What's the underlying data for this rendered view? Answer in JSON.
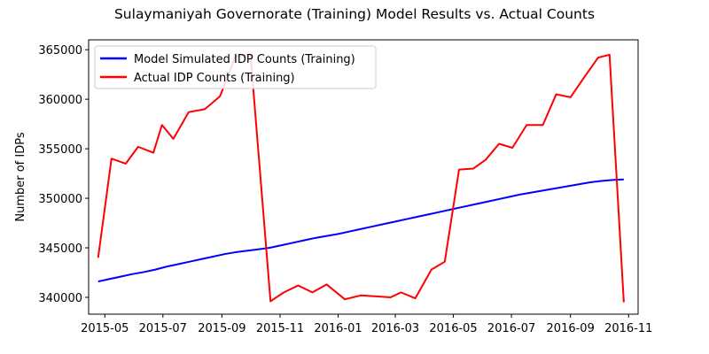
{
  "chart_data": {
    "type": "line",
    "title": "Sulaymaniyah Governorate (Training) Model Results vs. Actual Counts",
    "xlabel": "",
    "ylabel": "Number of IDPs",
    "ylim": [
      338300,
      366000
    ],
    "xlim": [
      "2015-04-14",
      "2016-11-11"
    ],
    "x_ticks": [
      "2015-05",
      "2015-07",
      "2015-09",
      "2015-11",
      "2016-01",
      "2016-03",
      "2016-05",
      "2016-07",
      "2016-09",
      "2016-11"
    ],
    "y_ticks": [
      340000,
      345000,
      350000,
      355000,
      360000,
      365000
    ],
    "grid": false,
    "legend_position": "top-left",
    "series": [
      {
        "name": "Model Simulated IDP Counts (Training)",
        "color": "#0000ff",
        "x": [
          "2015-04-24",
          "2015-05-06",
          "2015-05-18",
          "2015-05-30",
          "2015-06-11",
          "2015-06-23",
          "2015-07-05",
          "2015-07-17",
          "2015-07-29",
          "2015-08-10",
          "2015-08-22",
          "2015-09-03",
          "2015-09-15",
          "2015-09-27",
          "2015-10-09",
          "2015-10-21",
          "2015-11-02",
          "2015-11-14",
          "2015-11-26",
          "2015-12-08",
          "2015-12-20",
          "2016-01-01",
          "2016-01-13",
          "2016-01-25",
          "2016-02-06",
          "2016-02-18",
          "2016-03-01",
          "2016-03-13",
          "2016-03-25",
          "2016-04-06",
          "2016-04-18",
          "2016-04-30",
          "2016-05-12",
          "2016-05-24",
          "2016-06-05",
          "2016-06-17",
          "2016-06-29",
          "2016-07-11",
          "2016-07-23",
          "2016-08-04",
          "2016-08-16",
          "2016-08-28",
          "2016-09-09",
          "2016-09-21",
          "2016-10-03",
          "2016-10-15",
          "2016-10-27"
        ],
        "values": [
          341600,
          341850,
          342100,
          342350,
          342550,
          342800,
          343100,
          343350,
          343600,
          343850,
          344100,
          344350,
          344550,
          344700,
          344850,
          345000,
          345250,
          345500,
          345750,
          346000,
          346200,
          346400,
          346650,
          346900,
          347150,
          347400,
          347650,
          347900,
          348150,
          348400,
          348650,
          348900,
          349150,
          349400,
          349650,
          349900,
          350150,
          350400,
          350600,
          350800,
          351000,
          351200,
          351400,
          351600,
          351750,
          351850,
          351900
        ]
      },
      {
        "name": "Actual IDP Counts (Training)",
        "color": "#ff0000",
        "x": [
          "2015-04-24",
          "2015-05-08",
          "2015-05-23",
          "2015-06-05",
          "2015-06-21",
          "2015-06-30",
          "2015-07-12",
          "2015-07-28",
          "2015-08-14",
          "2015-08-30",
          "2015-09-15",
          "2015-10-01",
          "2015-10-22",
          "2015-11-05",
          "2015-11-20",
          "2015-12-05",
          "2015-12-20",
          "2016-01-08",
          "2016-01-25",
          "2016-02-10",
          "2016-02-25",
          "2016-03-07",
          "2016-03-22",
          "2016-04-08",
          "2016-04-22",
          "2016-05-07",
          "2016-05-22",
          "2016-06-04",
          "2016-06-18",
          "2016-07-02",
          "2016-07-17",
          "2016-08-03",
          "2016-08-17",
          "2016-09-01",
          "2016-09-16",
          "2016-09-30",
          "2016-10-12",
          "2016-10-27"
        ],
        "values": [
          344000,
          354000,
          353500,
          355200,
          354600,
          357400,
          356000,
          358700,
          359000,
          360300,
          364300,
          364500,
          339600,
          340500,
          341200,
          340500,
          341300,
          339800,
          340200,
          340100,
          340000,
          340500,
          339900,
          342800,
          343600,
          352900,
          353000,
          353900,
          355500,
          355100,
          357400,
          357400,
          360500,
          360200,
          362300,
          364200,
          364500,
          339500
        ]
      }
    ]
  }
}
